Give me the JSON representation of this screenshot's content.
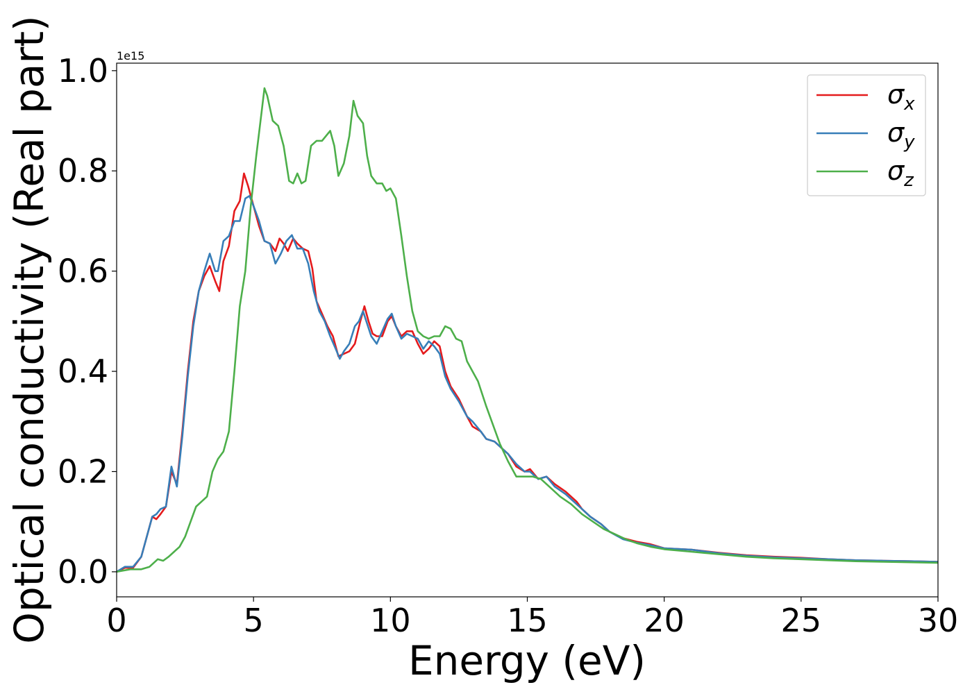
{
  "chart_data": {
    "type": "line",
    "xlabel": "Energy (eV)",
    "ylabel": "Optical conductivity (Real part)",
    "y_offset_text": "1e15",
    "xlim": [
      0,
      30
    ],
    "ylim": [
      -0.05,
      1.015
    ],
    "x_ticks": [
      0,
      5,
      10,
      15,
      20,
      25,
      30
    ],
    "x_tick_labels": [
      "0",
      "5",
      "10",
      "15",
      "20",
      "25",
      "30"
    ],
    "y_ticks": [
      0.0,
      0.2,
      0.4,
      0.6,
      0.8,
      1.0
    ],
    "y_tick_labels": [
      "0.0",
      "0.2",
      "0.4",
      "0.6",
      "0.8",
      "1.0"
    ],
    "grid": false,
    "legend": "top-right",
    "series": [
      {
        "name": "σ",
        "subscript": "x",
        "color": "#e41a1c",
        "points": [
          [
            0,
            0.0
          ],
          [
            0.3,
            0.008
          ],
          [
            0.6,
            0.008
          ],
          [
            0.9,
            0.03
          ],
          [
            1.1,
            0.07
          ],
          [
            1.3,
            0.11
          ],
          [
            1.45,
            0.105
          ],
          [
            1.6,
            0.115
          ],
          [
            1.8,
            0.13
          ],
          [
            2.0,
            0.2
          ],
          [
            2.2,
            0.175
          ],
          [
            2.4,
            0.28
          ],
          [
            2.6,
            0.4
          ],
          [
            2.8,
            0.5
          ],
          [
            3.0,
            0.56
          ],
          [
            3.2,
            0.59
          ],
          [
            3.4,
            0.61
          ],
          [
            3.6,
            0.58
          ],
          [
            3.75,
            0.56
          ],
          [
            3.9,
            0.62
          ],
          [
            4.1,
            0.65
          ],
          [
            4.3,
            0.72
          ],
          [
            4.5,
            0.74
          ],
          [
            4.65,
            0.795
          ],
          [
            4.8,
            0.77
          ],
          [
            5.0,
            0.73
          ],
          [
            5.2,
            0.69
          ],
          [
            5.4,
            0.66
          ],
          [
            5.6,
            0.655
          ],
          [
            5.8,
            0.64
          ],
          [
            5.95,
            0.665
          ],
          [
            6.1,
            0.655
          ],
          [
            6.25,
            0.64
          ],
          [
            6.45,
            0.665
          ],
          [
            6.6,
            0.655
          ],
          [
            6.8,
            0.645
          ],
          [
            7.0,
            0.64
          ],
          [
            7.15,
            0.605
          ],
          [
            7.3,
            0.54
          ],
          [
            7.5,
            0.515
          ],
          [
            7.7,
            0.49
          ],
          [
            7.9,
            0.47
          ],
          [
            8.1,
            0.43
          ],
          [
            8.3,
            0.435
          ],
          [
            8.5,
            0.44
          ],
          [
            8.7,
            0.455
          ],
          [
            8.9,
            0.5
          ],
          [
            9.05,
            0.53
          ],
          [
            9.2,
            0.5
          ],
          [
            9.35,
            0.475
          ],
          [
            9.5,
            0.47
          ],
          [
            9.7,
            0.47
          ],
          [
            9.9,
            0.5
          ],
          [
            10.05,
            0.51
          ],
          [
            10.2,
            0.49
          ],
          [
            10.4,
            0.47
          ],
          [
            10.6,
            0.48
          ],
          [
            10.8,
            0.48
          ],
          [
            11.0,
            0.455
          ],
          [
            11.2,
            0.435
          ],
          [
            11.4,
            0.445
          ],
          [
            11.6,
            0.46
          ],
          [
            11.8,
            0.45
          ],
          [
            12.0,
            0.4
          ],
          [
            12.2,
            0.37
          ],
          [
            12.5,
            0.345
          ],
          [
            12.8,
            0.31
          ],
          [
            13.0,
            0.29
          ],
          [
            13.3,
            0.28
          ],
          [
            13.5,
            0.265
          ],
          [
            13.8,
            0.26
          ],
          [
            14.0,
            0.25
          ],
          [
            14.3,
            0.235
          ],
          [
            14.6,
            0.21
          ],
          [
            14.9,
            0.2
          ],
          [
            15.1,
            0.205
          ],
          [
            15.4,
            0.185
          ],
          [
            15.7,
            0.19
          ],
          [
            16.0,
            0.175
          ],
          [
            16.4,
            0.16
          ],
          [
            16.8,
            0.14
          ],
          [
            17.0,
            0.125
          ],
          [
            17.3,
            0.11
          ],
          [
            17.7,
            0.095
          ],
          [
            18.0,
            0.08
          ],
          [
            18.5,
            0.067
          ],
          [
            19.0,
            0.06
          ],
          [
            19.5,
            0.055
          ],
          [
            20.0,
            0.047
          ],
          [
            21.0,
            0.044
          ],
          [
            22.0,
            0.038
          ],
          [
            23.0,
            0.033
          ],
          [
            24.0,
            0.03
          ],
          [
            25.0,
            0.028
          ],
          [
            26.0,
            0.025
          ],
          [
            27.0,
            0.023
          ],
          [
            28.0,
            0.022
          ],
          [
            29.0,
            0.021
          ],
          [
            30.0,
            0.02
          ]
        ]
      },
      {
        "name": "σ",
        "subscript": "y",
        "color": "#377eb8",
        "points": [
          [
            0,
            0.0
          ],
          [
            0.3,
            0.01
          ],
          [
            0.6,
            0.01
          ],
          [
            0.9,
            0.03
          ],
          [
            1.1,
            0.07
          ],
          [
            1.3,
            0.11
          ],
          [
            1.45,
            0.115
          ],
          [
            1.6,
            0.125
          ],
          [
            1.8,
            0.13
          ],
          [
            2.0,
            0.21
          ],
          [
            2.2,
            0.17
          ],
          [
            2.4,
            0.27
          ],
          [
            2.6,
            0.39
          ],
          [
            2.8,
            0.49
          ],
          [
            3.0,
            0.56
          ],
          [
            3.2,
            0.6
          ],
          [
            3.4,
            0.635
          ],
          [
            3.6,
            0.6
          ],
          [
            3.7,
            0.6
          ],
          [
            3.9,
            0.66
          ],
          [
            4.1,
            0.67
          ],
          [
            4.3,
            0.7
          ],
          [
            4.5,
            0.7
          ],
          [
            4.7,
            0.745
          ],
          [
            4.85,
            0.75
          ],
          [
            5.0,
            0.73
          ],
          [
            5.2,
            0.7
          ],
          [
            5.4,
            0.66
          ],
          [
            5.6,
            0.655
          ],
          [
            5.8,
            0.615
          ],
          [
            6.0,
            0.635
          ],
          [
            6.2,
            0.66
          ],
          [
            6.4,
            0.672
          ],
          [
            6.6,
            0.645
          ],
          [
            6.8,
            0.645
          ],
          [
            7.0,
            0.615
          ],
          [
            7.2,
            0.56
          ],
          [
            7.4,
            0.52
          ],
          [
            7.6,
            0.5
          ],
          [
            7.8,
            0.47
          ],
          [
            8.0,
            0.445
          ],
          [
            8.15,
            0.425
          ],
          [
            8.3,
            0.44
          ],
          [
            8.5,
            0.455
          ],
          [
            8.7,
            0.49
          ],
          [
            8.85,
            0.5
          ],
          [
            9.0,
            0.52
          ],
          [
            9.15,
            0.495
          ],
          [
            9.3,
            0.47
          ],
          [
            9.5,
            0.455
          ],
          [
            9.7,
            0.48
          ],
          [
            9.9,
            0.505
          ],
          [
            10.05,
            0.515
          ],
          [
            10.2,
            0.49
          ],
          [
            10.4,
            0.465
          ],
          [
            10.6,
            0.475
          ],
          [
            10.8,
            0.47
          ],
          [
            11.0,
            0.465
          ],
          [
            11.2,
            0.445
          ],
          [
            11.4,
            0.46
          ],
          [
            11.6,
            0.45
          ],
          [
            11.8,
            0.435
          ],
          [
            12.0,
            0.39
          ],
          [
            12.2,
            0.365
          ],
          [
            12.5,
            0.34
          ],
          [
            12.8,
            0.31
          ],
          [
            13.0,
            0.3
          ],
          [
            13.3,
            0.28
          ],
          [
            13.5,
            0.265
          ],
          [
            13.8,
            0.26
          ],
          [
            14.0,
            0.25
          ],
          [
            14.3,
            0.235
          ],
          [
            14.6,
            0.215
          ],
          [
            14.9,
            0.2
          ],
          [
            15.1,
            0.2
          ],
          [
            15.4,
            0.185
          ],
          [
            15.7,
            0.19
          ],
          [
            16.0,
            0.17
          ],
          [
            16.4,
            0.155
          ],
          [
            16.8,
            0.135
          ],
          [
            17.0,
            0.125
          ],
          [
            17.3,
            0.11
          ],
          [
            17.7,
            0.095
          ],
          [
            18.0,
            0.08
          ],
          [
            18.5,
            0.065
          ],
          [
            19.0,
            0.058
          ],
          [
            19.5,
            0.053
          ],
          [
            20.0,
            0.047
          ],
          [
            21.0,
            0.044
          ],
          [
            22.0,
            0.037
          ],
          [
            23.0,
            0.032
          ],
          [
            24.0,
            0.029
          ],
          [
            25.0,
            0.027
          ],
          [
            26.0,
            0.025
          ],
          [
            27.0,
            0.023
          ],
          [
            28.0,
            0.022
          ],
          [
            29.0,
            0.021
          ],
          [
            30.0,
            0.02
          ]
        ]
      },
      {
        "name": "σ",
        "subscript": "z",
        "color": "#4daf4a",
        "points": [
          [
            0,
            0.0
          ],
          [
            0.5,
            0.005
          ],
          [
            0.9,
            0.005
          ],
          [
            1.2,
            0.01
          ],
          [
            1.5,
            0.025
          ],
          [
            1.7,
            0.022
          ],
          [
            1.9,
            0.03
          ],
          [
            2.1,
            0.04
          ],
          [
            2.3,
            0.05
          ],
          [
            2.5,
            0.07
          ],
          [
            2.7,
            0.1
          ],
          [
            2.9,
            0.13
          ],
          [
            3.1,
            0.14
          ],
          [
            3.3,
            0.15
          ],
          [
            3.5,
            0.2
          ],
          [
            3.7,
            0.225
          ],
          [
            3.9,
            0.24
          ],
          [
            4.1,
            0.28
          ],
          [
            4.3,
            0.4
          ],
          [
            4.5,
            0.53
          ],
          [
            4.7,
            0.6
          ],
          [
            4.9,
            0.73
          ],
          [
            5.1,
            0.83
          ],
          [
            5.3,
            0.92
          ],
          [
            5.4,
            0.965
          ],
          [
            5.5,
            0.95
          ],
          [
            5.7,
            0.9
          ],
          [
            5.9,
            0.89
          ],
          [
            6.1,
            0.85
          ],
          [
            6.3,
            0.78
          ],
          [
            6.45,
            0.775
          ],
          [
            6.6,
            0.795
          ],
          [
            6.75,
            0.775
          ],
          [
            6.9,
            0.78
          ],
          [
            7.1,
            0.85
          ],
          [
            7.3,
            0.86
          ],
          [
            7.5,
            0.86
          ],
          [
            7.8,
            0.88
          ],
          [
            7.95,
            0.85
          ],
          [
            8.1,
            0.79
          ],
          [
            8.3,
            0.815
          ],
          [
            8.5,
            0.87
          ],
          [
            8.65,
            0.94
          ],
          [
            8.8,
            0.91
          ],
          [
            9.0,
            0.895
          ],
          [
            9.15,
            0.83
          ],
          [
            9.3,
            0.79
          ],
          [
            9.5,
            0.775
          ],
          [
            9.7,
            0.775
          ],
          [
            9.85,
            0.76
          ],
          [
            10.0,
            0.765
          ],
          [
            10.2,
            0.745
          ],
          [
            10.4,
            0.67
          ],
          [
            10.6,
            0.59
          ],
          [
            10.8,
            0.52
          ],
          [
            11.0,
            0.48
          ],
          [
            11.2,
            0.47
          ],
          [
            11.4,
            0.465
          ],
          [
            11.6,
            0.47
          ],
          [
            11.8,
            0.47
          ],
          [
            12.0,
            0.49
          ],
          [
            12.2,
            0.485
          ],
          [
            12.4,
            0.465
          ],
          [
            12.6,
            0.46
          ],
          [
            12.8,
            0.42
          ],
          [
            13.0,
            0.4
          ],
          [
            13.2,
            0.38
          ],
          [
            13.5,
            0.33
          ],
          [
            13.8,
            0.285
          ],
          [
            14.0,
            0.255
          ],
          [
            14.3,
            0.22
          ],
          [
            14.6,
            0.19
          ],
          [
            14.9,
            0.19
          ],
          [
            15.2,
            0.19
          ],
          [
            15.5,
            0.185
          ],
          [
            15.8,
            0.17
          ],
          [
            16.2,
            0.15
          ],
          [
            16.6,
            0.135
          ],
          [
            17.0,
            0.115
          ],
          [
            17.4,
            0.1
          ],
          [
            17.8,
            0.085
          ],
          [
            18.2,
            0.075
          ],
          [
            18.6,
            0.065
          ],
          [
            19.0,
            0.057
          ],
          [
            19.5,
            0.05
          ],
          [
            20.0,
            0.045
          ],
          [
            21.0,
            0.04
          ],
          [
            22.0,
            0.035
          ],
          [
            23.0,
            0.03
          ],
          [
            24.0,
            0.027
          ],
          [
            25.0,
            0.025
          ],
          [
            26.0,
            0.023
          ],
          [
            27.0,
            0.021
          ],
          [
            28.0,
            0.02
          ],
          [
            29.0,
            0.019
          ],
          [
            30.0,
            0.018
          ]
        ]
      }
    ]
  }
}
